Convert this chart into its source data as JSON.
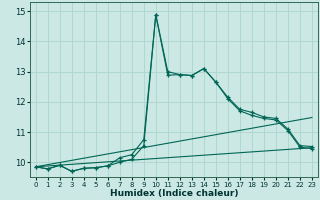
{
  "xlabel": "Humidex (Indice chaleur)",
  "bg_color": "#cce8e4",
  "grid_color": "#b0d8d0",
  "line_color": "#006655",
  "xlim": [
    -0.5,
    23.5
  ],
  "ylim": [
    9.5,
    15.3
  ],
  "yticks": [
    10,
    11,
    12,
    13,
    14,
    15
  ],
  "xticks": [
    0,
    1,
    2,
    3,
    4,
    5,
    6,
    7,
    8,
    9,
    10,
    11,
    12,
    13,
    14,
    15,
    16,
    17,
    18,
    19,
    20,
    21,
    22,
    23
  ],
  "line1_x": [
    0,
    1,
    2,
    3,
    4,
    5,
    6,
    7,
    8,
    9,
    10,
    11,
    12,
    13,
    14,
    15,
    16,
    17,
    18,
    19,
    20,
    21,
    22,
    23
  ],
  "line1_y": [
    9.85,
    9.78,
    9.9,
    9.7,
    9.8,
    9.82,
    9.88,
    10.15,
    10.25,
    10.75,
    14.88,
    13.0,
    12.9,
    12.87,
    13.1,
    12.65,
    12.15,
    11.75,
    11.65,
    11.5,
    11.45,
    11.1,
    10.55,
    10.52
  ],
  "line2_x": [
    0,
    1,
    2,
    3,
    4,
    5,
    6,
    7,
    8,
    9,
    10,
    11,
    12,
    13,
    14,
    15,
    16,
    17,
    18,
    19,
    20,
    21,
    22,
    23
  ],
  "line2_y": [
    9.85,
    9.78,
    9.9,
    9.7,
    9.8,
    9.82,
    9.88,
    10.0,
    10.1,
    10.55,
    14.88,
    12.88,
    12.9,
    12.87,
    13.1,
    12.65,
    12.1,
    11.7,
    11.55,
    11.45,
    11.4,
    11.05,
    10.5,
    10.45
  ],
  "line3_x": [
    0,
    23
  ],
  "line3_y": [
    9.85,
    11.48
  ],
  "line4_x": [
    0,
    23
  ],
  "line4_y": [
    9.85,
    10.48
  ]
}
